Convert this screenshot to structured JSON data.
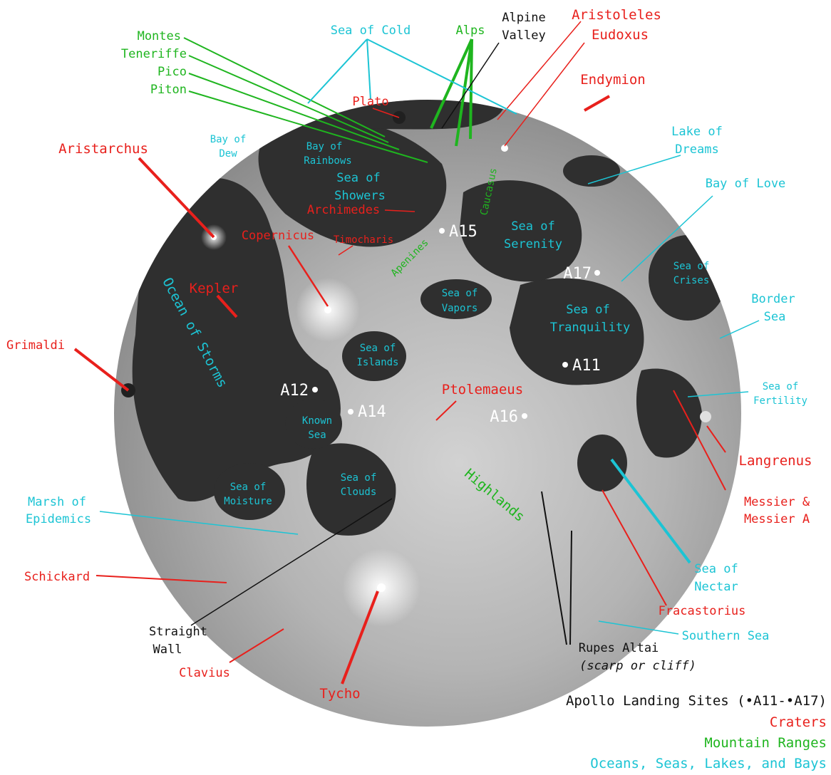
{
  "colors": {
    "crater": "#e8201c",
    "mountain": "#1fb51f",
    "sea": "#1cc4d4",
    "apollo": "#111111",
    "moon_dark": "#2e2e2e",
    "moon_light": "#bdbdbd"
  },
  "craters": [
    "Aristoleles",
    "Eudoxus",
    "Endymion",
    "Plato",
    "Aristarchus",
    "Archimedes",
    "Copernicus",
    "Timocharis",
    "Kepler",
    "Grimaldi",
    "Ptolemaeus",
    "Langrenus",
    "Messier &",
    "Messier A",
    "Schickard",
    "Fracastorius",
    "Clavius",
    "Tycho"
  ],
  "mountains": [
    "Montes",
    "Teneriffe",
    "Pico",
    "Piton",
    "Alps",
    "Caucasus",
    "Apenines",
    "Highlands"
  ],
  "seas": [
    "Sea of Cold",
    "Bay of",
    "Dew",
    "Bay of",
    "Rainbows",
    "Sea of",
    "Showers",
    "Lake of",
    "Dreams",
    "Bay of Love",
    "Sea of",
    "Serenity",
    "Sea of",
    "Crises",
    "Ocean of Storms",
    "Border",
    "Sea",
    "Sea of",
    "Vapors",
    "Sea of",
    "Tranquility",
    "Sea of",
    "Islands",
    "Sea of",
    "Fertility",
    "Known",
    "Sea",
    "Sea of",
    "Moisture",
    "Sea of",
    "Clouds",
    "Marsh of",
    "Epidemics",
    "Sea of",
    "Nectar",
    "Southern Sea"
  ],
  "other_features": [
    "Alpine",
    "Valley",
    "Straight",
    "Wall",
    "Rupes Altai",
    "(scarp or cliff)"
  ],
  "apollo_sites": [
    "A15",
    "A17",
    "A11",
    "A12",
    "A14",
    "A16"
  ],
  "legend": {
    "apollo": "Apollo Landing Sites (•A11-•A17)",
    "craters": "Craters",
    "mountains": "Mountain Ranges",
    "seas": "Oceans, Seas, Lakes, and Bays"
  }
}
